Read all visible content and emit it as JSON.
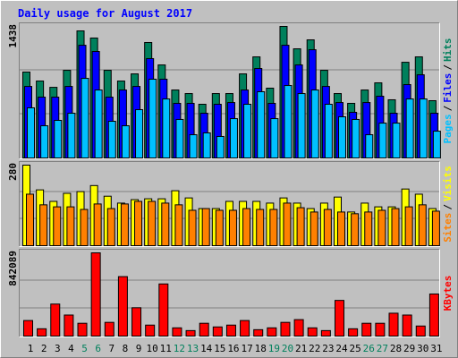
{
  "chart_data": [
    {
      "type": "bar",
      "title": "Daily usage for August 2017",
      "legend_separator": "/",
      "ylim": [
        0,
        1438
      ],
      "yticks": [
        1438
      ],
      "series": [
        {
          "name": "Hits",
          "color": "#00805c",
          "values": [
            939,
            841,
            772,
            958,
            1389,
            1311,
            958,
            841,
            919,
            1262,
            1017,
            743,
            704,
            587,
            704,
            704,
            919,
            1105,
            763,
            1438,
            1193,
            1291,
            958,
            704,
            597,
            743,
            821,
            636,
            1046,
            1105,
            626
          ]
        },
        {
          "name": "Files",
          "color": "#0000ff",
          "values": [
            782,
            665,
            665,
            782,
            1232,
            1164,
            665,
            743,
            782,
            1086,
            861,
            597,
            597,
            489,
            587,
            606,
            743,
            978,
            597,
            1232,
            1017,
            1183,
            782,
            606,
            499,
            606,
            675,
            489,
            802,
            909,
            489
          ]
        },
        {
          "name": "Pages",
          "color": "#00c0ff",
          "values": [
            548,
            352,
            411,
            489,
            870,
            743,
            401,
            352,
            528,
            861,
            645,
            421,
            254,
            274,
            235,
            430,
            587,
            724,
            430,
            792,
            704,
            743,
            587,
            450,
            421,
            254,
            381,
            381,
            645,
            645,
            293
          ]
        }
      ]
    },
    {
      "type": "bar",
      "legend_separator": "/",
      "ylim": [
        0,
        280
      ],
      "yticks": [
        280
      ],
      "series": [
        {
          "name": "Visits",
          "color": "#ffff00",
          "values": [
            280,
            194,
            154,
            182,
            188,
            209,
            172,
            148,
            160,
            163,
            163,
            191,
            166,
            129,
            129,
            154,
            154,
            154,
            148,
            166,
            148,
            129,
            148,
            169,
            117,
            148,
            135,
            135,
            197,
            179,
            129
          ]
        },
        {
          "name": "Sites",
          "color": "#ff8000",
          "values": [
            179,
            142,
            135,
            135,
            126,
            145,
            129,
            145,
            154,
            154,
            148,
            142,
            123,
            129,
            123,
            123,
            129,
            126,
            126,
            148,
            132,
            117,
            126,
            117,
            111,
            117,
            123,
            129,
            135,
            142,
            120
          ]
        }
      ]
    },
    {
      "type": "bar",
      "ylim": [
        0,
        842089
      ],
      "yticks": [
        842089
      ],
      "categories": [
        "1",
        "2",
        "3",
        "4",
        "5",
        "6",
        "7",
        "8",
        "9",
        "10",
        "11",
        "12",
        "13",
        "14",
        "15",
        "16",
        "17",
        "18",
        "19",
        "20",
        "21",
        "22",
        "23",
        "24",
        "25",
        "26",
        "27",
        "28",
        "29",
        "30",
        "31"
      ],
      "category_color": "#000000",
      "highlight_color": "#00805c",
      "highlight_categories": [
        "5",
        "6",
        "12",
        "13",
        "19",
        "20",
        "26",
        "27"
      ],
      "series": [
        {
          "name": "KBytes",
          "color": "#ff0000",
          "values": [
            157318,
            74032,
            323890,
            212842,
            129556,
            842089,
            138810,
            601510,
            286874,
            111048,
            527478,
            83286,
            55524,
            129556,
            92540,
            111048,
            157318,
            64778,
            83286,
            138810,
            166572,
            83286,
            55524,
            360906,
            74032,
            129556,
            129556,
            231350,
            212842,
            101794,
            425684
          ]
        }
      ]
    }
  ]
}
